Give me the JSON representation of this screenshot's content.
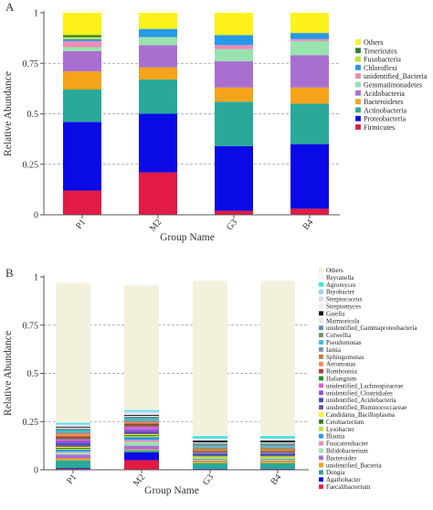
{
  "chart_data": [
    {
      "panel_label": "A",
      "type": "bar",
      "stacked": true,
      "xlabel": "Group Name",
      "ylabel": "Relative Abundance",
      "ylim": [
        0,
        1
      ],
      "yticks": [
        "0",
        "0.25",
        "0.5",
        "0.75",
        "1"
      ],
      "grid": "dashed horizontal at 0.25, 0.5, 0.75",
      "legend_placement": "right",
      "categories": [
        "P1",
        "M2",
        "G3",
        "B4"
      ],
      "series": [
        {
          "name": "Firmicutes",
          "color": "#e31a43",
          "values": [
            0.12,
            0.21,
            0.02,
            0.03
          ]
        },
        {
          "name": "Proteobacteria",
          "color": "#0a0ae6",
          "values": [
            0.34,
            0.29,
            0.32,
            0.32
          ]
        },
        {
          "name": "Actinobacteria",
          "color": "#2aa99a",
          "values": [
            0.16,
            0.17,
            0.22,
            0.2
          ]
        },
        {
          "name": "Bacteroidetes",
          "color": "#f5a31a",
          "values": [
            0.09,
            0.06,
            0.07,
            0.08
          ]
        },
        {
          "name": "Acidobacteria",
          "color": "#a96fd0",
          "values": [
            0.1,
            0.11,
            0.13,
            0.16
          ]
        },
        {
          "name": "Gemmatimonadetes",
          "color": "#98e3ae",
          "values": [
            0.02,
            0.04,
            0.06,
            0.07
          ]
        },
        {
          "name": "unidentified_Bacteria",
          "color": "#ee8ab5",
          "values": [
            0.03,
            0.0,
            0.02,
            0.01
          ]
        },
        {
          "name": "Chloroflexi",
          "color": "#2898e8",
          "values": [
            0.01,
            0.04,
            0.05,
            0.03
          ]
        },
        {
          "name": "Fusobacteria",
          "color": "#b8e832",
          "values": [
            0.01,
            0.0,
            0.0,
            0.0
          ]
        },
        {
          "name": "Tenericutes",
          "color": "#2f7a2f",
          "values": [
            0.01,
            0.0,
            0.0,
            0.0
          ]
        },
        {
          "name": "Others",
          "color": "#fdf21a",
          "values": [
            0.11,
            0.08,
            0.11,
            0.1
          ]
        }
      ]
    },
    {
      "panel_label": "B",
      "type": "bar",
      "stacked": true,
      "xlabel": "Group Name",
      "ylabel": "Relative Abundance",
      "ylim": [
        0,
        1
      ],
      "yticks": [
        "0",
        "0.25",
        "0.5",
        "0.75",
        "1"
      ],
      "grid": "dashed horizontal at 0.25, 0.5, 0.75",
      "legend_placement": "right",
      "categories": [
        "P1",
        "M2",
        "G3",
        "B4"
      ],
      "series": [
        {
          "name": "Faecalibacterium",
          "color": "#e31a43",
          "values": [
            0.005,
            0.05,
            0.003,
            0.003
          ]
        },
        {
          "name": "Agathobacter",
          "color": "#0a0ae6",
          "values": [
            0.004,
            0.04,
            0.002,
            0.002
          ]
        },
        {
          "name": "Dongia",
          "color": "#2aa99a",
          "values": [
            0.04,
            0.01,
            0.03,
            0.03
          ]
        },
        {
          "name": "unidentified_Bacteria",
          "color": "#f5a31a",
          "values": [
            0.01,
            0.005,
            0.01,
            0.01
          ]
        },
        {
          "name": "Bacteroides",
          "color": "#a96fd0",
          "values": [
            0.02,
            0.02,
            0.004,
            0.004
          ]
        },
        {
          "name": "Bifidobacterium",
          "color": "#98e3ae",
          "values": [
            0.01,
            0.02,
            0.003,
            0.003
          ]
        },
        {
          "name": "Fusicatenibacter",
          "color": "#ee8ab5",
          "values": [
            0.005,
            0.01,
            0.002,
            0.002
          ]
        },
        {
          "name": "Blautia",
          "color": "#2898e8",
          "values": [
            0.01,
            0.015,
            0.003,
            0.003
          ]
        },
        {
          "name": "Lysobacter",
          "color": "#b8e832",
          "values": [
            0.005,
            0.005,
            0.01,
            0.01
          ]
        },
        {
          "name": "Cetobacterium",
          "color": "#2f7a2f",
          "values": [
            0.005,
            0.005,
            0.002,
            0.002
          ]
        },
        {
          "name": "Candidatus_Bacilloplasma",
          "color": "#fdf21a",
          "values": [
            0.005,
            0.005,
            0.002,
            0.002
          ]
        },
        {
          "name": "unidentified_Ruminococcaceae",
          "color": "#6b4fa0",
          "values": [
            0.01,
            0.01,
            0.003,
            0.003
          ]
        },
        {
          "name": "unidentified_Acidobacteria",
          "color": "#3e4bb0",
          "values": [
            0.01,
            0.005,
            0.01,
            0.01
          ]
        },
        {
          "name": "unidentified_Clostridiales",
          "color": "#8a4fd8",
          "values": [
            0.01,
            0.01,
            0.003,
            0.003
          ]
        },
        {
          "name": "unidentified_Lachnospiraceae",
          "color": "#e15ad8",
          "values": [
            0.01,
            0.015,
            0.003,
            0.003
          ]
        },
        {
          "name": "Haliangium",
          "color": "#1a8f2a",
          "values": [
            0.005,
            0.005,
            0.005,
            0.005
          ]
        },
        {
          "name": "Romboutsia",
          "color": "#b03a2e",
          "values": [
            0.01,
            0.01,
            0.002,
            0.002
          ]
        },
        {
          "name": "Aeromonas",
          "color": "#f08a4b",
          "values": [
            0.01,
            0.005,
            0.005,
            0.005
          ]
        },
        {
          "name": "Sphingomonas",
          "color": "#c47a3a",
          "values": [
            0.005,
            0.005,
            0.01,
            0.01
          ]
        },
        {
          "name": "Iamia",
          "color": "#7a8fa8",
          "values": [
            0.005,
            0.005,
            0.005,
            0.005
          ]
        },
        {
          "name": "Pseudomonas",
          "color": "#35c0d8",
          "values": [
            0.01,
            0.01,
            0.005,
            0.005
          ]
        },
        {
          "name": "Colwellia",
          "color": "#6f8f6f",
          "values": [
            0.005,
            0.005,
            0.005,
            0.005
          ]
        },
        {
          "name": "unidentified_Gammaproteobacteria",
          "color": "#5f8fa8",
          "values": [
            0.005,
            0.005,
            0.01,
            0.01
          ]
        },
        {
          "name": "Marmoricola",
          "color": "#e8e8e8",
          "values": [
            0.005,
            0.005,
            0.005,
            0.005
          ]
        },
        {
          "name": "Gaiella",
          "color": "#111111",
          "values": [
            0.005,
            0.005,
            0.01,
            0.01
          ]
        },
        {
          "name": "Streptomyces",
          "color": "#f2f2f2",
          "values": [
            0.005,
            0.005,
            0.005,
            0.005
          ]
        },
        {
          "name": "Streptococcus",
          "color": "#dcdcf0",
          "values": [
            0.005,
            0.01,
            0.003,
            0.003
          ]
        },
        {
          "name": "Bryobacter",
          "color": "#8fd3f5",
          "values": [
            0.005,
            0.005,
            0.005,
            0.005
          ]
        },
        {
          "name": "Agromyces",
          "color": "#35e8d8",
          "values": [
            0.005,
            0.005,
            0.01,
            0.01
          ]
        },
        {
          "name": "Reyranella",
          "color": "#f7f7f7",
          "values": [
            0.005,
            0.005,
            0.005,
            0.005
          ]
        },
        {
          "name": "Others",
          "color": "#f3f1dc",
          "values": [
            0.72,
            0.64,
            0.8,
            0.8
          ]
        }
      ]
    }
  ]
}
